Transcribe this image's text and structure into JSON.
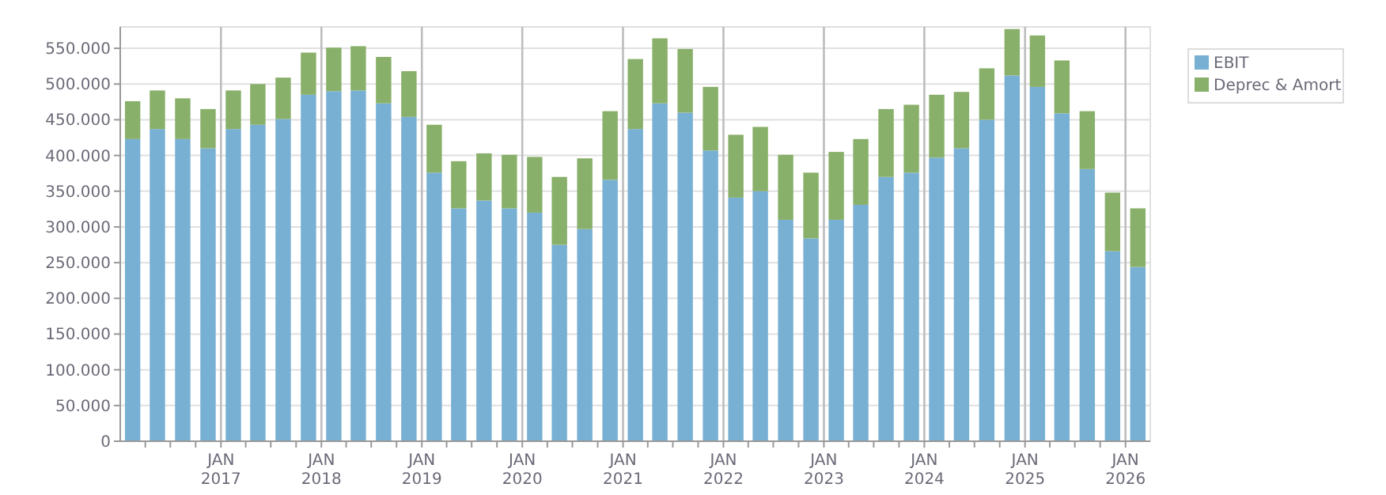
{
  "chart_data": {
    "type": "bar",
    "stacked": true,
    "x": [
      "2016-02-15",
      "2016-05-15",
      "2016-08-15",
      "2016-11-15",
      "2017-02-15",
      "2017-05-15",
      "2017-08-15",
      "2017-11-15",
      "2018-02-15",
      "2018-05-15",
      "2018-08-15",
      "2018-11-15",
      "2019-02-15",
      "2019-05-15",
      "2019-08-15",
      "2019-11-15",
      "2020-02-15",
      "2020-05-15",
      "2020-08-15",
      "2020-11-15",
      "2021-02-15",
      "2021-05-15",
      "2021-08-15",
      "2021-11-15",
      "2022-02-15",
      "2022-05-15",
      "2022-08-15",
      "2022-11-15",
      "2023-02-15",
      "2023-05-15",
      "2023-08-15",
      "2023-11-15",
      "2024-02-15",
      "2024-05-15",
      "2024-08-15",
      "2024-11-15",
      "2025-02-15",
      "2025-05-15",
      "2025-08-15",
      "2025-11-15",
      "2026-02-15"
    ],
    "series": [
      {
        "name": "EBIT",
        "color": "#78b0d3",
        "values": [
          423000,
          437000,
          423000,
          410000,
          437000,
          443000,
          451000,
          485000,
          490000,
          491000,
          473000,
          454000,
          376000,
          326000,
          337000,
          326000,
          320000,
          275000,
          297000,
          366000,
          437000,
          473000,
          460000,
          407000,
          341000,
          350000,
          310000,
          284000,
          310000,
          331000,
          370000,
          376000,
          397000,
          410000,
          450000,
          512000,
          496000,
          459000,
          381000,
          266000,
          244000
        ]
      },
      {
        "name": "Deprec & Amort",
        "color": "#89b06a",
        "values": [
          53000,
          54000,
          57000,
          55000,
          54000,
          57000,
          58000,
          59000,
          61000,
          62000,
          65000,
          64000,
          67000,
          66000,
          66000,
          75000,
          78000,
          95000,
          99000,
          96000,
          98000,
          91000,
          89000,
          89000,
          88000,
          90000,
          91000,
          92000,
          95000,
          92000,
          95000,
          95000,
          88000,
          79000,
          72000,
          65000,
          72000,
          74000,
          81000,
          82000,
          82000
        ]
      }
    ],
    "ylim": [
      0,
      580000
    ],
    "yticks": [
      0,
      {
        "value": 50000,
        "label": "50.000"
      },
      {
        "value": 100000,
        "label": "100.000"
      },
      {
        "value": 150000,
        "label": "150.000"
      },
      {
        "value": 200000,
        "label": "200.000"
      },
      {
        "value": 250000,
        "label": "250.000"
      },
      {
        "value": 300000,
        "label": "300.000"
      },
      {
        "value": 350000,
        "label": "350.000"
      },
      {
        "value": 400000,
        "label": "400.000"
      },
      {
        "value": 450000,
        "label": "450.000"
      },
      {
        "value": 500000,
        "label": "500.000"
      },
      {
        "value": 550000,
        "label": "550.000"
      }
    ],
    "xlim": [
      "2016-01-01",
      "2026-04-01"
    ],
    "xticks": [
      {
        "value": "2016-04-01",
        "label": null
      },
      {
        "value": "2016-07-01",
        "label": null
      },
      {
        "value": "2016-10-01",
        "label": null
      },
      {
        "value": "2017-01-01",
        "label": "JAN 2017"
      },
      {
        "value": "2017-04-01",
        "label": null
      },
      {
        "value": "2017-07-01",
        "label": null
      },
      {
        "value": "2017-10-01",
        "label": null
      },
      {
        "value": "2018-01-01",
        "label": "JAN 2018"
      },
      {
        "value": "2018-04-01",
        "label": null
      },
      {
        "value": "2018-07-01",
        "label": null
      },
      {
        "value": "2018-10-01",
        "label": null
      },
      {
        "value": "2019-01-01",
        "label": "JAN 2019"
      },
      {
        "value": "2019-04-01",
        "label": null
      },
      {
        "value": "2019-07-01",
        "label": null
      },
      {
        "value": "2019-10-01",
        "label": null
      },
      {
        "value": "2020-01-01",
        "label": "JAN 2020"
      },
      {
        "value": "2020-04-01",
        "label": null
      },
      {
        "value": "2020-07-01",
        "label": null
      },
      {
        "value": "2020-10-01",
        "label": null
      },
      {
        "value": "2021-01-01",
        "label": "JAN 2021"
      },
      {
        "value": "2021-04-01",
        "label": null
      },
      {
        "value": "2021-07-01",
        "label": null
      },
      {
        "value": "2021-10-01",
        "label": null
      },
      {
        "value": "2022-01-01",
        "label": "JAN 2022"
      },
      {
        "value": "2022-04-01",
        "label": null
      },
      {
        "value": "2022-07-01",
        "label": null
      },
      {
        "value": "2022-10-01",
        "label": null
      },
      {
        "value": "2023-01-01",
        "label": "JAN 2023"
      },
      {
        "value": "2023-04-01",
        "label": null
      },
      {
        "value": "2023-07-01",
        "label": null
      },
      {
        "value": "2023-10-01",
        "label": null
      },
      {
        "value": "2024-01-01",
        "label": "JAN 2024"
      },
      {
        "value": "2024-04-01",
        "label": null
      },
      {
        "value": "2024-07-01",
        "label": null
      },
      {
        "value": "2024-10-01",
        "label": null
      },
      {
        "value": "2025-01-01",
        "label": "JAN 2025"
      },
      {
        "value": "2025-04-01",
        "label": null
      },
      {
        "value": "2025-07-01",
        "label": null
      },
      {
        "value": "2025-10-01",
        "label": null
      },
      {
        "value": "2026-01-01",
        "label": "JAN 2026"
      }
    ],
    "grid": true,
    "legend": "top right"
  }
}
